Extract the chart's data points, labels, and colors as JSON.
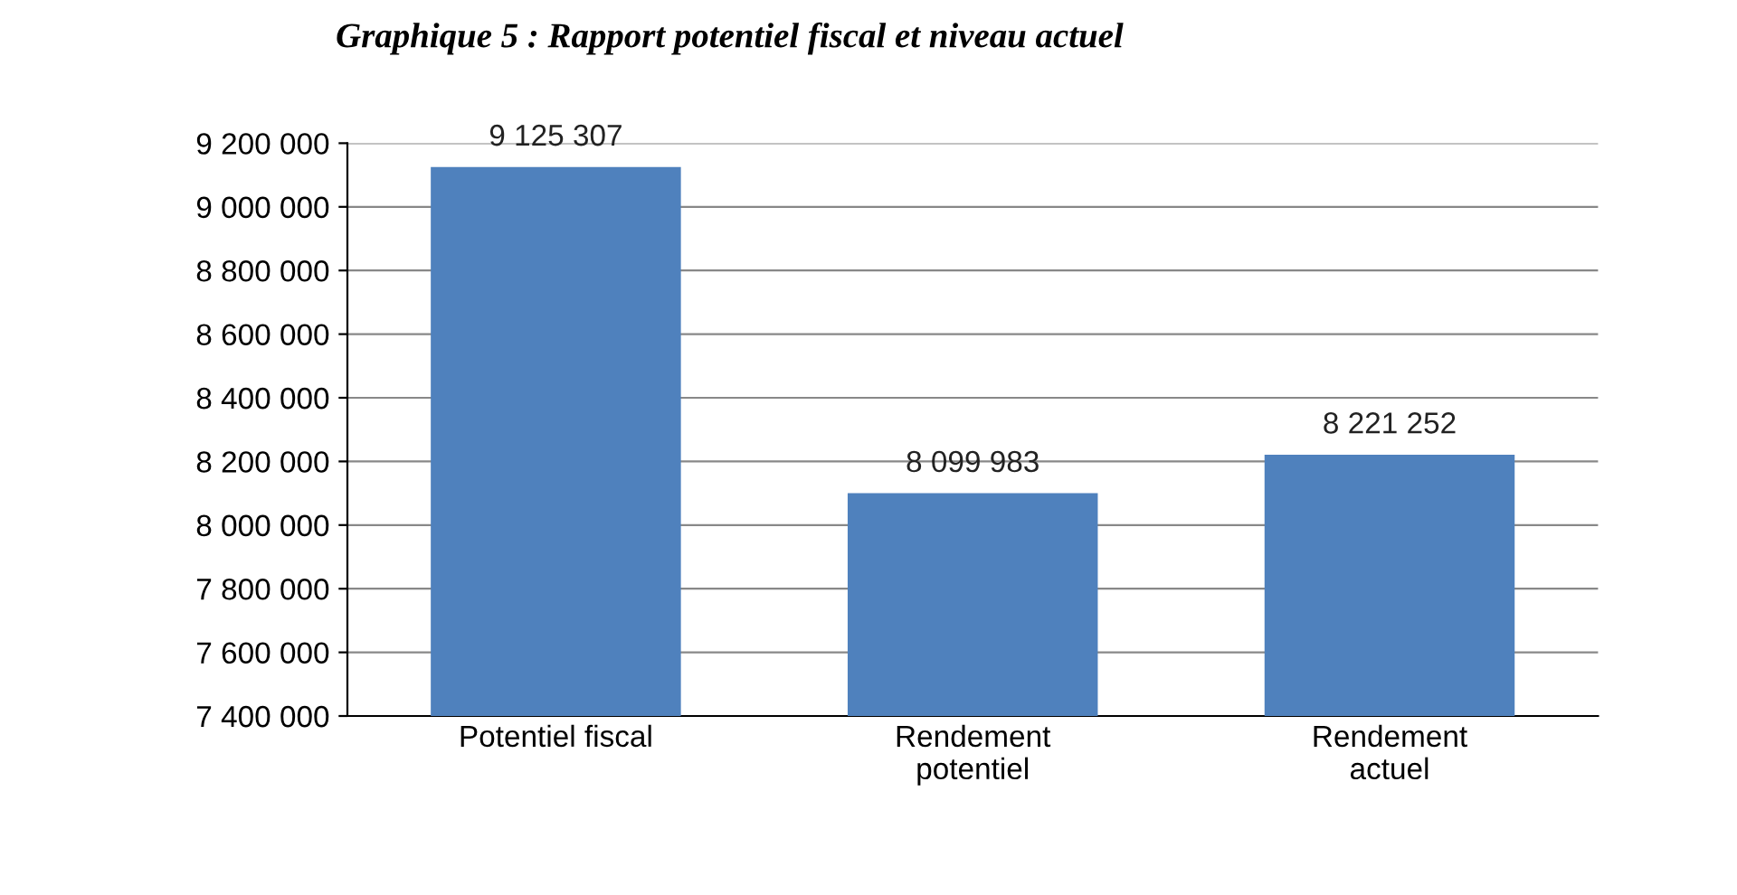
{
  "chart_data": {
    "type": "bar",
    "title": "Graphique 5 : Rapport potentiel fiscal et niveau actuel",
    "categories": [
      "Potentiel fiscal",
      "Rendement\npotentiel",
      "Rendement\nactuel"
    ],
    "values": [
      9125307,
      8099983,
      8221252
    ],
    "color": "#4f81bd",
    "value_labels": [
      "9 125 307",
      "8 099 983",
      "8 221 252"
    ],
    "ylim": [
      7400000,
      9200000
    ],
    "yticks": [
      {
        "value": 7400000,
        "label": "7 400 000"
      },
      {
        "value": 7600000,
        "label": "7 600 000"
      },
      {
        "value": 7800000,
        "label": "7 800 000"
      },
      {
        "value": 8000000,
        "label": "8 000 000"
      },
      {
        "value": 8200000,
        "label": "8 200 000"
      },
      {
        "value": 8400000,
        "label": "8 400 000"
      },
      {
        "value": 8600000,
        "label": "8 600 000"
      },
      {
        "value": 8800000,
        "label": "8 800 000"
      },
      {
        "value": 9000000,
        "label": "9 000 000"
      },
      {
        "value": 9200000,
        "label": "9 200 000"
      }
    ],
    "grid": "y",
    "legend": false
  }
}
